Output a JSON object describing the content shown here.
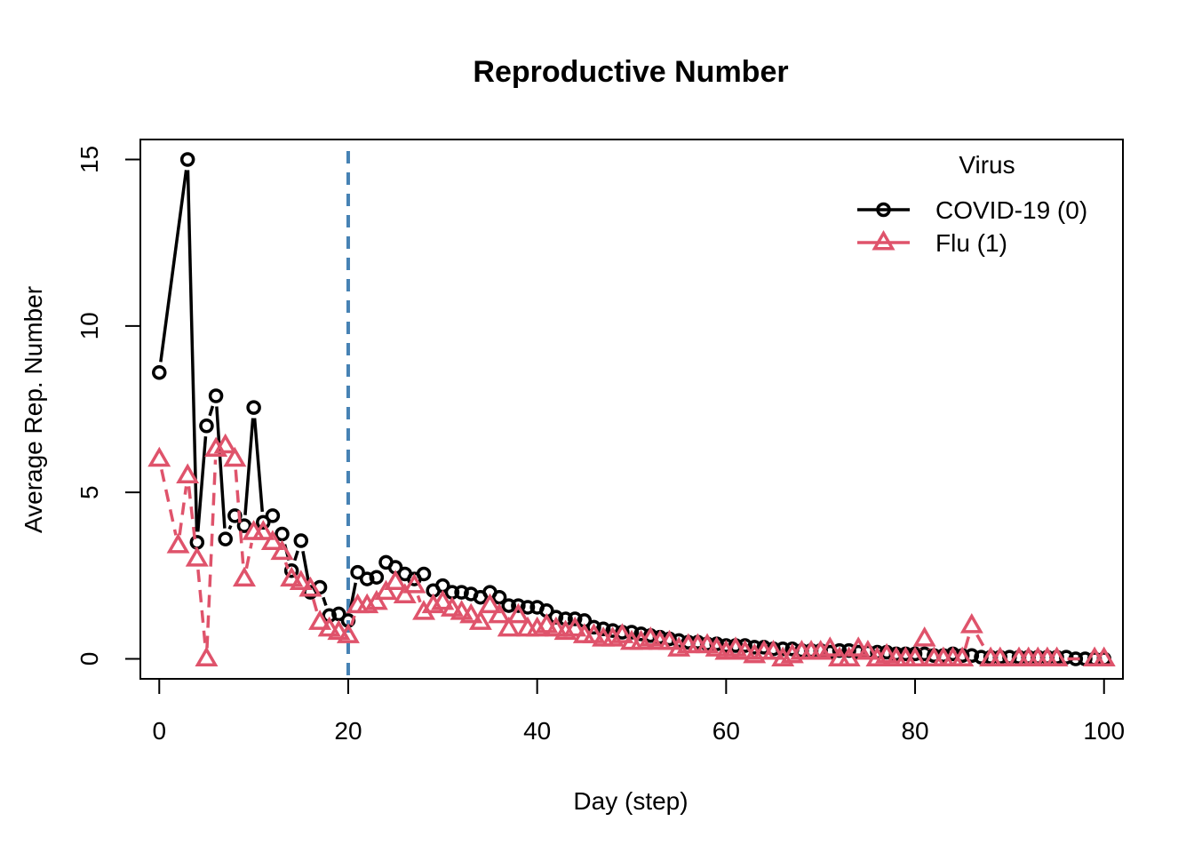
{
  "chart_data": {
    "type": "line",
    "title": "Reproductive Number",
    "xlabel": "Day (step)",
    "ylabel": "Average Rep. Number",
    "xlim": [
      -2,
      102
    ],
    "ylim": [
      -0.6,
      15.6
    ],
    "xticks": [
      0,
      20,
      40,
      60,
      80,
      100
    ],
    "yticks": [
      0,
      5,
      10,
      15
    ],
    "vline": {
      "x": 20,
      "color": "#4682B4",
      "style": "dashed"
    },
    "legend": {
      "title": "Virus",
      "position": "top-right"
    },
    "series": [
      {
        "name": "COVID-19 (0)",
        "color": "#000000",
        "marker": "circle",
        "line": "solid",
        "x": [
          0,
          3,
          4,
          5,
          6,
          7,
          8,
          9,
          10,
          11,
          12,
          13,
          14,
          15,
          16,
          17,
          18,
          19,
          20,
          21,
          22,
          23,
          24,
          25,
          26,
          27,
          28,
          29,
          30,
          31,
          32,
          33,
          34,
          35,
          36,
          37,
          38,
          39,
          40,
          41,
          42,
          43,
          44,
          45,
          46,
          47,
          48,
          49,
          50,
          51,
          52,
          53,
          54,
          55,
          56,
          57,
          58,
          59,
          60,
          61,
          62,
          63,
          64,
          65,
          66,
          67,
          68,
          69,
          70,
          71,
          72,
          73,
          74,
          75,
          76,
          77,
          78,
          79,
          80,
          81,
          82,
          83,
          84,
          85,
          86,
          87,
          88,
          89,
          90,
          91,
          92,
          93,
          94,
          95,
          96,
          97,
          98,
          99,
          100
        ],
        "y": [
          8.6,
          15.0,
          3.5,
          7.0,
          7.9,
          3.6,
          4.3,
          4.0,
          7.55,
          4.1,
          4.3,
          3.75,
          2.65,
          3.55,
          2.0,
          2.15,
          1.3,
          1.35,
          1.15,
          2.6,
          2.4,
          2.45,
          2.9,
          2.75,
          2.55,
          2.4,
          2.55,
          2.05,
          2.2,
          2.0,
          2.0,
          1.95,
          1.85,
          2.0,
          1.85,
          1.6,
          1.6,
          1.55,
          1.55,
          1.45,
          1.25,
          1.2,
          1.2,
          1.15,
          0.95,
          0.9,
          0.85,
          0.8,
          0.8,
          0.75,
          0.7,
          0.65,
          0.6,
          0.55,
          0.5,
          0.5,
          0.45,
          0.45,
          0.4,
          0.4,
          0.4,
          0.35,
          0.35,
          0.3,
          0.3,
          0.3,
          0.25,
          0.25,
          0.25,
          0.2,
          0.25,
          0.25,
          0.2,
          0.2,
          0.2,
          0.2,
          0.15,
          0.15,
          0.15,
          0.15,
          0.1,
          0.1,
          0.15,
          0.1,
          0.1,
          0.05,
          0.05,
          0.05,
          0.05,
          0.05,
          0.05,
          0.05,
          0.05,
          0.05,
          0.05,
          0.0,
          0.0,
          0.0,
          0.0
        ]
      },
      {
        "name": "Flu (1)",
        "color": "#DF536B",
        "marker": "triangle",
        "line": "dashed",
        "x": [
          0,
          2,
          3,
          4,
          5,
          6,
          7,
          8,
          9,
          10,
          11,
          12,
          13,
          14,
          15,
          16,
          17,
          18,
          19,
          20,
          21,
          22,
          23,
          24,
          25,
          26,
          27,
          28,
          29,
          30,
          31,
          32,
          33,
          34,
          35,
          36,
          37,
          38,
          39,
          40,
          41,
          42,
          43,
          44,
          45,
          46,
          47,
          48,
          49,
          50,
          51,
          52,
          53,
          54,
          55,
          56,
          57,
          58,
          59,
          60,
          61,
          62,
          63,
          64,
          65,
          66,
          67,
          68,
          69,
          70,
          71,
          72,
          73,
          74,
          75,
          76,
          77,
          78,
          79,
          80,
          81,
          82,
          83,
          84,
          85,
          86,
          88,
          89,
          91,
          92,
          93,
          94,
          95,
          99,
          100
        ],
        "y": [
          6.0,
          3.4,
          5.5,
          3.0,
          0.0,
          6.3,
          6.4,
          6.0,
          2.4,
          3.8,
          3.8,
          3.5,
          3.2,
          2.4,
          2.3,
          2.1,
          1.1,
          0.9,
          0.8,
          0.7,
          1.6,
          1.6,
          1.7,
          2.0,
          2.3,
          1.9,
          2.2,
          1.4,
          1.6,
          1.7,
          1.5,
          1.4,
          1.3,
          1.1,
          1.6,
          1.3,
          0.9,
          1.3,
          0.9,
          0.9,
          1.0,
          0.9,
          0.8,
          0.9,
          0.7,
          0.7,
          0.6,
          0.6,
          0.7,
          0.5,
          0.5,
          0.6,
          0.5,
          0.5,
          0.3,
          0.4,
          0.4,
          0.4,
          0.3,
          0.2,
          0.3,
          0.2,
          0.1,
          0.2,
          0.2,
          0.0,
          0.1,
          0.2,
          0.2,
          0.2,
          0.3,
          0.0,
          0.0,
          0.3,
          0.2,
          0.0,
          0.1,
          0.0,
          0.0,
          0.0,
          0.6,
          0.0,
          0.0,
          0.0,
          0.0,
          1.0,
          0.0,
          0.0,
          0.0,
          0.0,
          0.0,
          0.0,
          0.0,
          0.0,
          0.0
        ]
      }
    ]
  }
}
